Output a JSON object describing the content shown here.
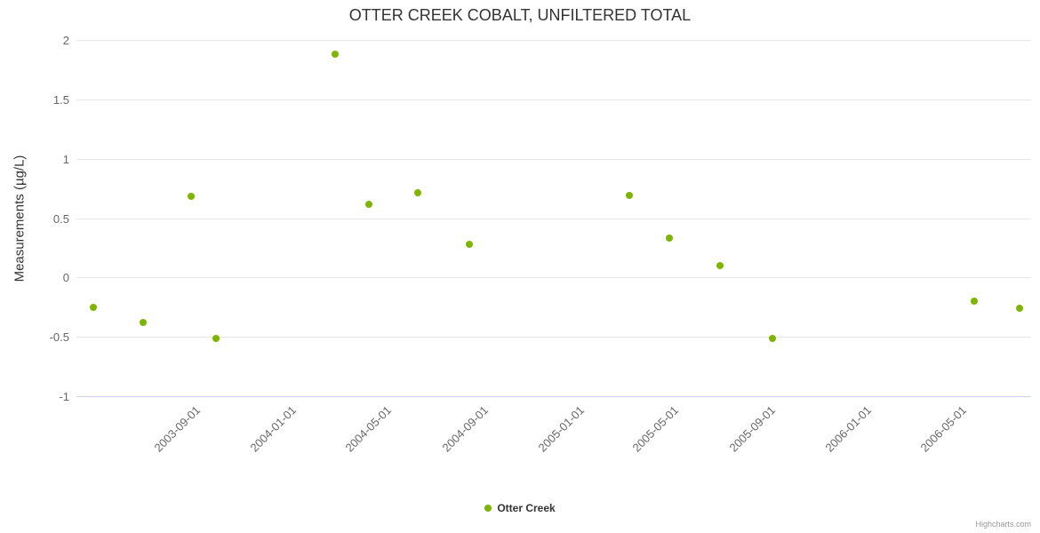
{
  "chart_data": {
    "type": "scatter",
    "title": "OTTER CREEK COBALT, UNFILTERED TOTAL",
    "xlabel": "",
    "ylabel": "Measurements (µg/L)",
    "ylim": [
      -1,
      2
    ],
    "yticks": [
      2,
      1.5,
      1,
      0.5,
      0,
      -0.5,
      -1
    ],
    "xlim": [
      "2003-04-10",
      "2006-08-05"
    ],
    "xtick_labels": [
      "2003-09-01",
      "2004-01-01",
      "2004-05-01",
      "2004-09-01",
      "2005-01-01",
      "2005-05-01",
      "2005-09-01",
      "2006-01-01",
      "2006-05-01"
    ],
    "grid": true,
    "legend_position": "bottom-center",
    "marker_color": "#7db500",
    "series": [
      {
        "name": "Otter Creek",
        "points": [
          {
            "date": "2003-05-01",
            "value": -0.25
          },
          {
            "date": "2003-07-04",
            "value": -0.38
          },
          {
            "date": "2003-09-03",
            "value": 0.68
          },
          {
            "date": "2003-10-04",
            "value": -0.51
          },
          {
            "date": "2004-03-04",
            "value": 1.88
          },
          {
            "date": "2004-04-15",
            "value": 0.62
          },
          {
            "date": "2004-06-17",
            "value": 0.71
          },
          {
            "date": "2004-08-21",
            "value": 0.28
          },
          {
            "date": "2005-03-12",
            "value": 0.69
          },
          {
            "date": "2005-05-02",
            "value": 0.33
          },
          {
            "date": "2005-07-06",
            "value": 0.1
          },
          {
            "date": "2005-09-10",
            "value": -0.51
          },
          {
            "date": "2006-05-25",
            "value": -0.2
          },
          {
            "date": "2006-07-21",
            "value": -0.26
          }
        ]
      }
    ],
    "credits": "Highcharts.com"
  }
}
